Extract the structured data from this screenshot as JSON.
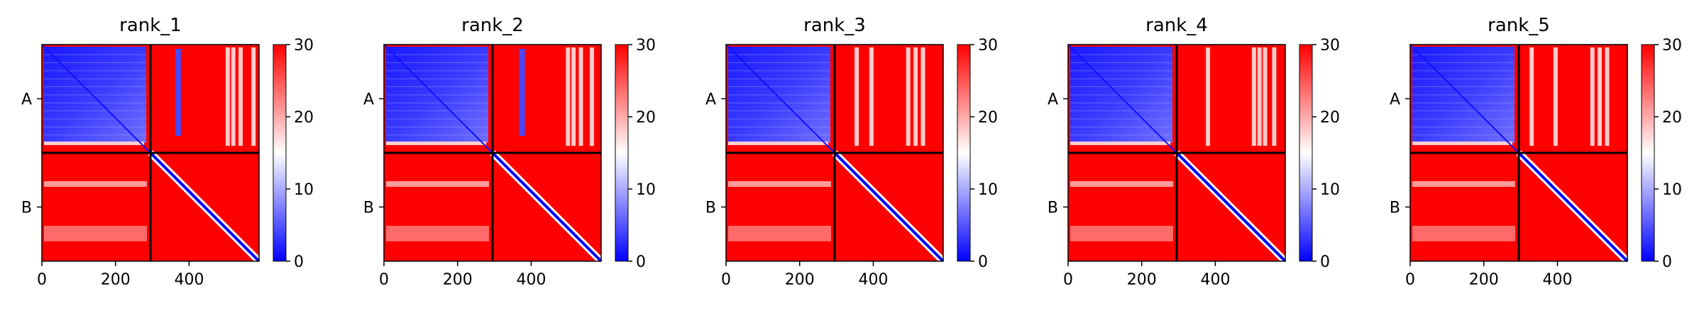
{
  "chart_data": [
    {
      "type": "heatmap",
      "title": "rank_1",
      "x_ticks": [
        0,
        200,
        400
      ],
      "y_tick_labels": [
        "A",
        "B"
      ],
      "chain_boundary": 295,
      "length": 590,
      "colorbar": {
        "min": 0,
        "max": 30,
        "ticks": [
          0,
          10,
          20,
          30
        ]
      },
      "colorscale": [
        "#0000ff",
        "#ffffff",
        "#ff0000"
      ],
      "blue_stripes": [
        370
      ],
      "white_stripes": [
        505,
        520,
        540,
        575
      ]
    },
    {
      "type": "heatmap",
      "title": "rank_2",
      "x_ticks": [
        0,
        200,
        400
      ],
      "y_tick_labels": [
        "A",
        "B"
      ],
      "chain_boundary": 295,
      "length": 590,
      "colorbar": {
        "min": 0,
        "max": 30,
        "ticks": [
          0,
          10,
          20,
          30
        ]
      },
      "colorscale": [
        "#0000ff",
        "#ffffff",
        "#ff0000"
      ],
      "blue_stripes": [
        375
      ],
      "white_stripes": [
        500,
        515,
        535,
        565
      ]
    },
    {
      "type": "heatmap",
      "title": "rank_3",
      "x_ticks": [
        0,
        200,
        400
      ],
      "y_tick_labels": [
        "A",
        "B"
      ],
      "chain_boundary": 295,
      "length": 590,
      "colorbar": {
        "min": 0,
        "max": 30,
        "ticks": [
          0,
          10,
          20,
          30
        ]
      },
      "colorscale": [
        "#0000ff",
        "#ffffff",
        "#ff0000"
      ],
      "blue_stripes": [],
      "white_stripes": [
        355,
        395,
        495,
        515,
        535
      ]
    },
    {
      "type": "heatmap",
      "title": "rank_4",
      "x_ticks": [
        0,
        200,
        400
      ],
      "y_tick_labels": [
        "A",
        "B"
      ],
      "chain_boundary": 295,
      "length": 590,
      "colorbar": {
        "min": 0,
        "max": 30,
        "ticks": [
          0,
          10,
          20,
          30
        ]
      },
      "colorscale": [
        "#0000ff",
        "#ffffff",
        "#ff0000"
      ],
      "blue_stripes": [],
      "white_stripes": [
        380,
        505,
        520,
        535,
        560
      ]
    },
    {
      "type": "heatmap",
      "title": "rank_5",
      "x_ticks": [
        0,
        200,
        400
      ],
      "y_tick_labels": [
        "A",
        "B"
      ],
      "chain_boundary": 295,
      "length": 590,
      "colorbar": {
        "min": 0,
        "max": 30,
        "ticks": [
          0,
          10,
          20,
          30
        ]
      },
      "colorscale": [
        "#0000ff",
        "#ffffff",
        "#ff0000"
      ],
      "blue_stripes": [],
      "white_stripes": [
        330,
        395,
        495,
        515,
        535
      ]
    }
  ]
}
